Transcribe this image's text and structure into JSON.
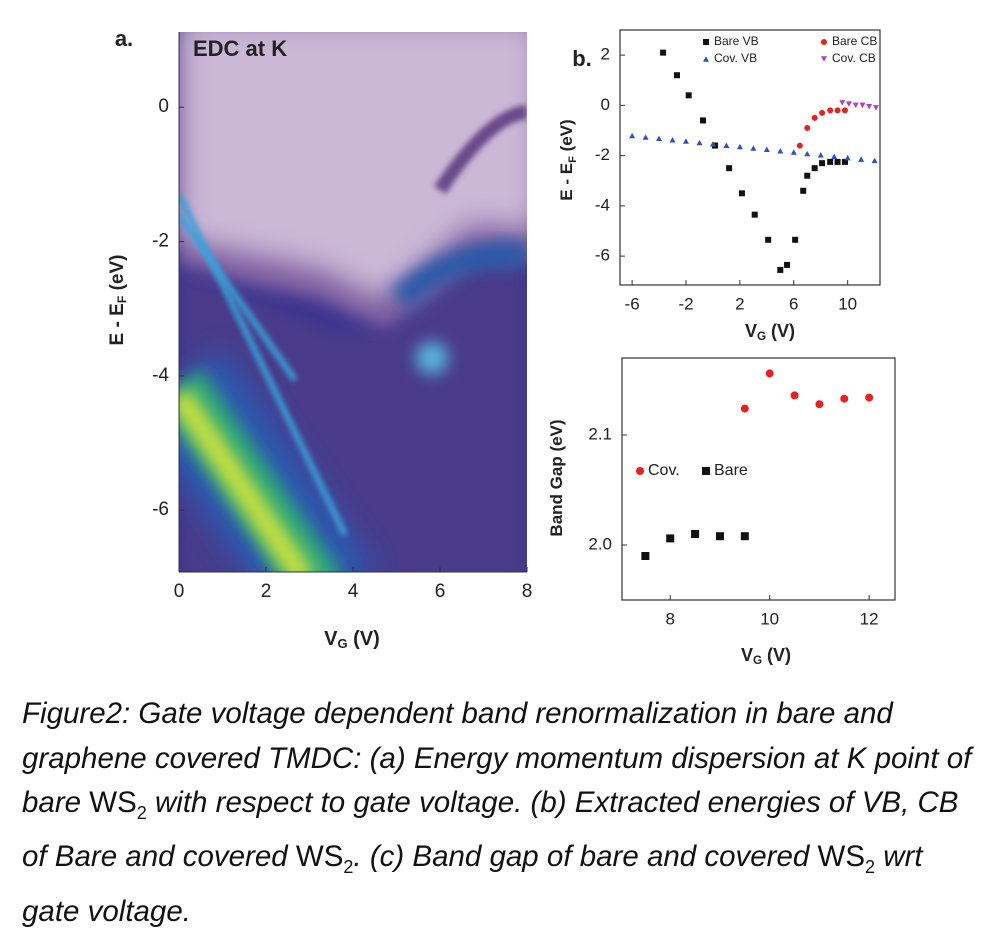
{
  "chart_data": [
    {
      "type": "heatmap",
      "panel_label": "a.",
      "title": "EDC at K",
      "xlabel": [
        "V",
        "G",
        " (V)"
      ],
      "ylabel": [
        "E - E",
        "F",
        " (eV)"
      ],
      "xlim": [
        0,
        8
      ],
      "xticks": [
        0,
        2,
        4,
        6,
        8
      ],
      "ylim": [
        -6.92,
        1.12
      ],
      "yticks": [
        -6,
        -4,
        -2,
        0
      ]
    },
    {
      "type": "scatter",
      "panel_label": "b.",
      "xlabel": [
        "V",
        "G",
        " (V)"
      ],
      "ylabel": [
        "E - E",
        "F",
        " (eV)"
      ],
      "xlim": [
        -6.9,
        12.4
      ],
      "xticks": [
        -6,
        -2,
        2,
        6,
        10
      ],
      "ylim": [
        -7.15,
        3.0
      ],
      "yticks": [
        -6,
        -4,
        -2,
        0,
        2
      ],
      "legend": "top",
      "series": [
        {
          "name": "Bare VB",
          "color": "#111111",
          "marker": "square",
          "x": [
            -3.7,
            -2.67,
            -1.8,
            -0.74,
            0.15,
            1.2,
            2.15,
            3.1,
            4.1,
            5.0,
            5.5,
            6.1,
            6.7,
            7.0,
            7.55,
            8.1,
            8.7,
            9.25,
            9.8
          ],
          "values": [
            2.1,
            1.2,
            0.4,
            -0.6,
            -1.6,
            -2.5,
            -3.5,
            -4.35,
            -5.35,
            -6.55,
            -6.35,
            -5.35,
            -3.4,
            -2.8,
            -2.5,
            -2.3,
            -2.25,
            -2.25,
            -2.25
          ]
        },
        {
          "name": "Bare CB",
          "color": "#e8201e",
          "marker": "circle",
          "x": [
            6.45,
            7.0,
            7.55,
            8.1,
            8.7,
            9.25,
            9.8
          ],
          "values": [
            -1.6,
            -0.9,
            -0.5,
            -0.3,
            -0.2,
            -0.2,
            -0.2
          ]
        },
        {
          "name": "Cov. VB",
          "color": "#2d50c8",
          "marker": "triangle",
          "x": [
            -6,
            -5,
            -4,
            -3,
            -2,
            -1,
            0,
            1,
            2,
            3,
            4,
            5,
            6,
            7,
            8,
            9,
            10,
            11,
            12
          ],
          "values": [
            -1.2,
            -1.26,
            -1.31,
            -1.37,
            -1.42,
            -1.48,
            -1.53,
            -1.59,
            -1.64,
            -1.7,
            -1.75,
            -1.81,
            -1.86,
            -1.92,
            -1.97,
            -2.03,
            -2.08,
            -2.14,
            -2.19
          ]
        },
        {
          "name": "Cov. CB",
          "color": "#b03cc8",
          "marker": "triangle-down",
          "x": [
            9.6,
            10.1,
            10.6,
            11.1,
            11.6,
            12.1
          ],
          "values": [
            0.1,
            0.05,
            0.0,
            0.0,
            -0.05,
            -0.1
          ]
        }
      ]
    },
    {
      "type": "scatter",
      "xlabel": [
        "V",
        "G",
        " (V)"
      ],
      "ylabel": [
        "Band Gap (eV)"
      ],
      "xlim": [
        7.03,
        12.52
      ],
      "xticks": [
        8,
        10,
        12
      ],
      "ylim": [
        1.95,
        2.17
      ],
      "yticks": [
        {
          "value": 2,
          "label": "2.0"
        },
        2.1
      ],
      "legend": "left",
      "series": [
        {
          "name": "Cov.",
          "color": "#e8201e",
          "marker": "circle",
          "x": [
            9.5,
            10,
            10.5,
            11,
            11.5,
            12
          ],
          "values": [
            2.124,
            2.156,
            2.136,
            2.128,
            2.133,
            2.134
          ]
        },
        {
          "name": "Bare",
          "color": "#111111",
          "marker": "square",
          "x": [
            7.5,
            8,
            8.5,
            9,
            9.5
          ],
          "values": [
            1.99,
            2.006,
            2.01,
            2.008,
            2.008
          ]
        }
      ]
    }
  ],
  "caption": [
    "Figure2: Gate voltage dependent band renormalization in bare and graphene covered TMDC: (a) Energy momentum dispersion at K point of bare ",
    "WS",
    "2",
    " with respect to gate voltage. (b) Extracted energies of VB, CB of Bare and covered ",
    "WS",
    "2",
    ". (c) Band gap of bare and covered ",
    "WS",
    "2",
    " wrt gate voltage."
  ]
}
